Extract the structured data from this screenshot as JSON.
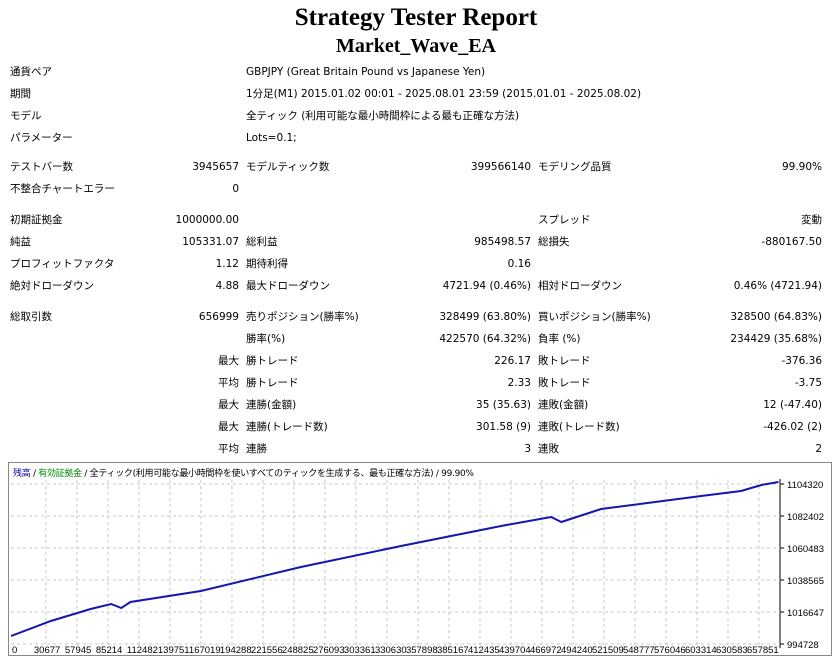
{
  "header": {
    "title": "Strategy Tester Report",
    "ea_name": "Market_Wave_EA"
  },
  "settings": [
    {
      "label": "通貨ペア",
      "value": "GBPJPY (Great Britain Pound vs Japanese Yen)"
    },
    {
      "label": "期間",
      "value": "1分足(M1) 2015.01.02 00:01 - 2025.08.01 23:59 (2015.01.01 - 2025.08.02)"
    },
    {
      "label": "モデル",
      "value": "全ティック (利用可能な最小時間枠による最も正確な方法)"
    },
    {
      "label": "パラメーター",
      "value": "Lots=0.1;"
    }
  ],
  "stats": [
    [
      "テストバー数",
      "3945657",
      "モデルティック数",
      "399566140",
      "モデリング品質",
      "99.90%"
    ],
    [
      "不整合チャートエラー",
      "0",
      "",
      "",
      "",
      ""
    ],
    [
      "初期証拠金",
      "1000000.00",
      "",
      "",
      "スプレッド",
      "変動"
    ],
    [
      "純益",
      "105331.07",
      "総利益",
      "985498.57",
      "総損失",
      "-880167.50"
    ],
    [
      "プロフィットファクタ",
      "1.12",
      "期待利得",
      "0.16",
      "",
      ""
    ],
    [
      "絶対ドローダウン",
      "4.88",
      "最大ドローダウン",
      "4721.94 (0.46%)",
      "相対ドローダウン",
      "0.46% (4721.94)"
    ],
    [
      "総取引数",
      "656999",
      "売りポジション(勝率%)",
      "328499 (63.80%)",
      "買いポジション(勝率%)",
      "328500 (64.83%)"
    ],
    [
      "",
      "",
      "勝率(%)",
      "422570 (64.32%)",
      "負率 (%)",
      "234429 (35.68%)"
    ],
    [
      "",
      "最大",
      "勝トレード",
      "226.17",
      "敗トレード",
      "-376.36"
    ],
    [
      "",
      "平均",
      "勝トレード",
      "2.33",
      "敗トレード",
      "-3.75"
    ],
    [
      "",
      "最大",
      "連勝(金額)",
      "35 (35.63)",
      "連敗(金額)",
      "12 (-47.40)"
    ],
    [
      "",
      "最大",
      "連勝(トレード数)",
      "301.58 (9)",
      "連敗(トレード数)",
      "-426.02 (2)"
    ],
    [
      "",
      "平均",
      "連勝",
      "3",
      "連敗",
      "2"
    ]
  ],
  "chart_data": {
    "type": "line",
    "legend": {
      "balance": "残高",
      "equity": "有効証拠金",
      "model": "全ティック(利用可能な最小時間枠を使いすべてのティックを生成する、最も正確な方法)",
      "quality": "99.90%",
      "sep": " / "
    },
    "colors": {
      "balance": "#0000aa",
      "equity": "#008800",
      "line": "#1515b0",
      "grid": "#c8c8c8"
    },
    "x_ticks": [
      "0",
      "30677",
      "57945",
      "85214",
      "112482",
      "139751",
      "167019",
      "194288",
      "221556",
      "248825",
      "276093",
      "303361",
      "330630",
      "357898",
      "385167",
      "412435",
      "439704",
      "466972",
      "494240",
      "521509",
      "548777",
      "576046",
      "603314",
      "630583",
      "657851"
    ],
    "y_ticks": [
      "1104320",
      "1082402",
      "1060483",
      "1038565",
      "1016647",
      "994728"
    ],
    "ylim": [
      994728,
      1104320
    ],
    "grid": true,
    "series": [
      {
        "x": [
          0,
          35000,
          70000,
          88000,
          97000,
          105000,
          167000,
          255000,
          343000,
          431000,
          475000,
          484000,
          519000,
          607000,
          642000,
          660000,
          675000
        ],
        "y": [
          1000206,
          1010481,
          1018700,
          1022127,
          1019387,
          1023495,
          1031030,
          1047467,
          1061850,
          1075550,
          1081715,
          1078290,
          1087195,
          1096100,
          1099520,
          1103630,
          1105684
        ]
      }
    ]
  }
}
